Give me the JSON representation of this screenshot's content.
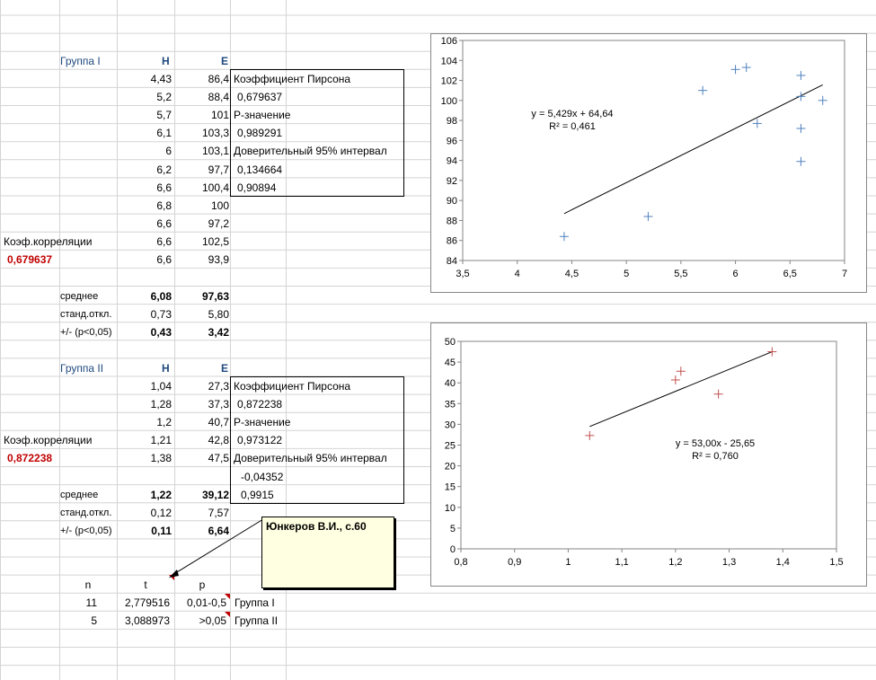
{
  "group1": {
    "title": "Группа I",
    "col_h": "H",
    "col_e": "E",
    "rows": [
      [
        "4,43",
        "86,4"
      ],
      [
        "5,2",
        "88,4"
      ],
      [
        "5,7",
        "101"
      ],
      [
        "6,1",
        "103,3"
      ],
      [
        "6",
        "103,1"
      ],
      [
        "6,2",
        "97,7"
      ],
      [
        "6,6",
        "100,4"
      ],
      [
        "6,8",
        "100"
      ],
      [
        "6,6",
        "97,2"
      ],
      [
        "6,6",
        "102,5"
      ],
      [
        "6,6",
        "93,9"
      ]
    ],
    "corr_label": "Коэф.корреляции",
    "corr_value": "0,679637",
    "mean_label": "среднее",
    "mean_h": "6,08",
    "mean_e": "97,63",
    "sd_label": "станд.откл.",
    "sd_h": "0,73",
    "sd_e": "5,80",
    "ci_label": "+/- (p<0,05)",
    "ci_h": "0,43",
    "ci_e": "3,42",
    "stats": [
      "Коэффициент Пирсона",
      "0,679637",
      "P-значение",
      "0,989291",
      "Доверительный 95% интервал",
      "0,134664",
      "0,90894"
    ]
  },
  "group2": {
    "title": "Группа II",
    "col_h": "H",
    "col_e": "E",
    "rows": [
      [
        "1,04",
        "27,3"
      ],
      [
        "1,28",
        "37,3"
      ],
      [
        "1,2",
        "40,7"
      ],
      [
        "1,21",
        "42,8"
      ],
      [
        "1,38",
        "47,5"
      ]
    ],
    "corr_label": "Коэф.корреляции",
    "corr_value": "0,872238",
    "mean_label": "среднее",
    "mean_h": "1,22",
    "mean_e": "39,12",
    "sd_label": "станд.откл.",
    "sd_h": "0,12",
    "sd_e": "7,57",
    "ci_label": "+/- (p<0,05)",
    "ci_h": "0,11",
    "ci_e": "6,64",
    "stats": [
      "Коэффициент Пирсона",
      "0,872238",
      "P-значение",
      "0,973122",
      "Доверительный 95% интервал",
      "-0,04352",
      "0,9915"
    ]
  },
  "comment": {
    "text": "Юнкеров В.И., с.60"
  },
  "ttest": {
    "headers": [
      "n",
      "t",
      "p"
    ],
    "rows": [
      {
        "n": "11",
        "t": "2,779516",
        "p": "0,01-0,5",
        "label": "Группа I"
      },
      {
        "n": "5",
        "t": "3,088973",
        "p": ">0,05",
        "label": "Группа II"
      }
    ]
  },
  "chart_data": [
    {
      "type": "scatter",
      "marker_color": "#4f81bd",
      "x": [
        4.43,
        5.2,
        5.7,
        6.1,
        6,
        6.2,
        6.6,
        6.8,
        6.6,
        6.6,
        6.6
      ],
      "y": [
        86.4,
        88.4,
        101,
        103.3,
        103.1,
        97.7,
        100.4,
        100,
        97.2,
        102.5,
        93.9
      ],
      "xlim": [
        3.5,
        7
      ],
      "ylim": [
        84,
        106
      ],
      "xticks": [
        3.5,
        4,
        4.5,
        5,
        5.5,
        6,
        6.5,
        7
      ],
      "xtick_labels": [
        "3,5",
        "4",
        "4,5",
        "5",
        "5,5",
        "6",
        "6,5",
        "7"
      ],
      "yticks": [
        84,
        86,
        88,
        90,
        92,
        94,
        96,
        98,
        100,
        102,
        104,
        106
      ],
      "ytick_labels": [
        "84",
        "86",
        "88",
        "90",
        "92",
        "94",
        "96",
        "98",
        "100",
        "102",
        "104",
        "106"
      ],
      "trend": {
        "slope": 5.429,
        "intercept": 64.64,
        "x_from": 4.43,
        "x_to": 6.8
      },
      "equation": "y = 5,429x + 64,64",
      "r2": "R² = 0,461",
      "grid": false
    },
    {
      "type": "scatter",
      "marker_color": "#c0504d",
      "x": [
        1.04,
        1.28,
        1.2,
        1.21,
        1.38
      ],
      "y": [
        27.3,
        37.3,
        40.7,
        42.8,
        47.5
      ],
      "xlim": [
        0.8,
        1.5
      ],
      "ylim": [
        0,
        50
      ],
      "xticks": [
        0.8,
        0.9,
        1,
        1.1,
        1.2,
        1.3,
        1.4,
        1.5
      ],
      "xtick_labels": [
        "0,8",
        "0,9",
        "1",
        "1,1",
        "1,2",
        "1,3",
        "1,4",
        "1,5"
      ],
      "yticks": [
        0,
        5,
        10,
        15,
        20,
        25,
        30,
        35,
        40,
        45,
        50
      ],
      "ytick_labels": [
        "0",
        "5",
        "10",
        "15",
        "20",
        "25",
        "30",
        "35",
        "40",
        "45",
        "50"
      ],
      "trend": {
        "slope": 53.0,
        "intercept": -25.65,
        "x_from": 1.04,
        "x_to": 1.38
      },
      "equation": "y = 53,00x - 25,65",
      "r2": "R² = 0,760",
      "grid": false
    }
  ]
}
